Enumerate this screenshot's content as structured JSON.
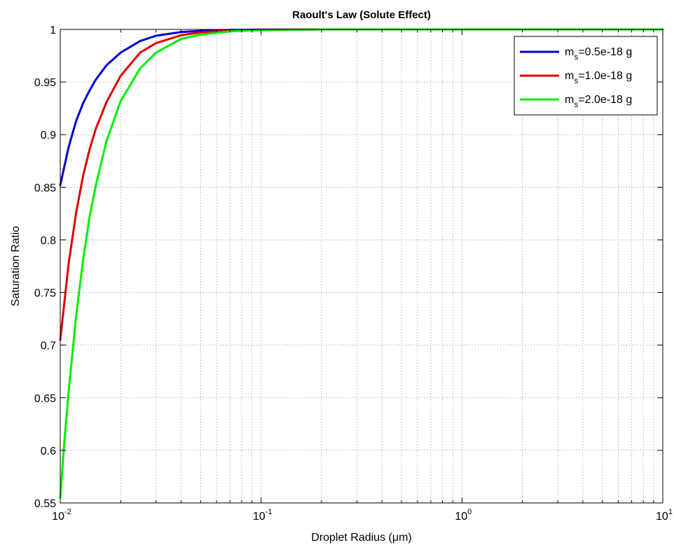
{
  "chart_data": {
    "type": "line",
    "title": "Raoult's Law (Solute Effect)",
    "xlabel": "Droplet Radius (μm)",
    "ylabel": "Saturation Ratio",
    "xscale": "log",
    "xlim": [
      0.01,
      10
    ],
    "ylim": [
      0.55,
      1.0
    ],
    "xticks": [
      {
        "value": 0.01,
        "base": "10",
        "exp": "-2"
      },
      {
        "value": 0.1,
        "base": "10",
        "exp": "-1"
      },
      {
        "value": 1,
        "base": "10",
        "exp": "0"
      },
      {
        "value": 10,
        "base": "10",
        "exp": "1"
      }
    ],
    "yticks": [
      0.55,
      0.6,
      0.65,
      0.7,
      0.75,
      0.8,
      0.85,
      0.9,
      0.95,
      1
    ],
    "ytick_labels": [
      "0.55",
      "0.6",
      "0.65",
      "0.7",
      "0.75",
      "0.8",
      "0.85",
      "0.9",
      "0.95",
      "1"
    ],
    "grid": true,
    "legend_position": "top-right",
    "series": [
      {
        "legend_main": "m",
        "legend_sub": "s",
        "legend_rest": "=0.5e-18 g",
        "color": "#0000cc",
        "points": [
          [
            0.01,
            0.852
          ],
          [
            0.011,
            0.888
          ],
          [
            0.012,
            0.913
          ],
          [
            0.013,
            0.93
          ],
          [
            0.014,
            0.942
          ],
          [
            0.015,
            0.952
          ],
          [
            0.017,
            0.966
          ],
          [
            0.02,
            0.978
          ],
          [
            0.025,
            0.989
          ],
          [
            0.03,
            0.994
          ],
          [
            0.04,
            0.9975
          ],
          [
            0.05,
            0.9987
          ],
          [
            0.07,
            0.9995
          ],
          [
            0.1,
            0.9998
          ],
          [
            0.2,
            1.0
          ],
          [
            1,
            1.0
          ],
          [
            10,
            1.0
          ]
        ]
      },
      {
        "legend_main": "m",
        "legend_sub": "s",
        "legend_rest": "=1.0e-18 g",
        "color": "#dd0000",
        "points": [
          [
            0.01,
            0.705
          ],
          [
            0.011,
            0.777
          ],
          [
            0.012,
            0.826
          ],
          [
            0.013,
            0.861
          ],
          [
            0.014,
            0.886
          ],
          [
            0.015,
            0.905
          ],
          [
            0.017,
            0.931
          ],
          [
            0.02,
            0.956
          ],
          [
            0.025,
            0.978
          ],
          [
            0.03,
            0.987
          ],
          [
            0.04,
            0.9945
          ],
          [
            0.05,
            0.9972
          ],
          [
            0.07,
            0.999
          ],
          [
            0.1,
            0.9997
          ],
          [
            0.2,
            1.0
          ],
          [
            1,
            1.0
          ],
          [
            10,
            1.0
          ]
        ]
      },
      {
        "legend_main": "m",
        "legend_sub": "s",
        "legend_rest": "=2.0e-18 g",
        "color": "#00ee00",
        "points": [
          [
            0.01,
            0.555
          ],
          [
            0.0105,
            0.61
          ],
          [
            0.011,
            0.655
          ],
          [
            0.012,
            0.728
          ],
          [
            0.013,
            0.781
          ],
          [
            0.014,
            0.822
          ],
          [
            0.015,
            0.851
          ],
          [
            0.017,
            0.894
          ],
          [
            0.02,
            0.932
          ],
          [
            0.025,
            0.963
          ],
          [
            0.03,
            0.978
          ],
          [
            0.04,
            0.991
          ],
          [
            0.05,
            0.995
          ],
          [
            0.07,
            0.9982
          ],
          [
            0.1,
            0.9994
          ],
          [
            0.2,
            1.0
          ],
          [
            1,
            1.0
          ],
          [
            10,
            1.0
          ]
        ]
      }
    ]
  }
}
